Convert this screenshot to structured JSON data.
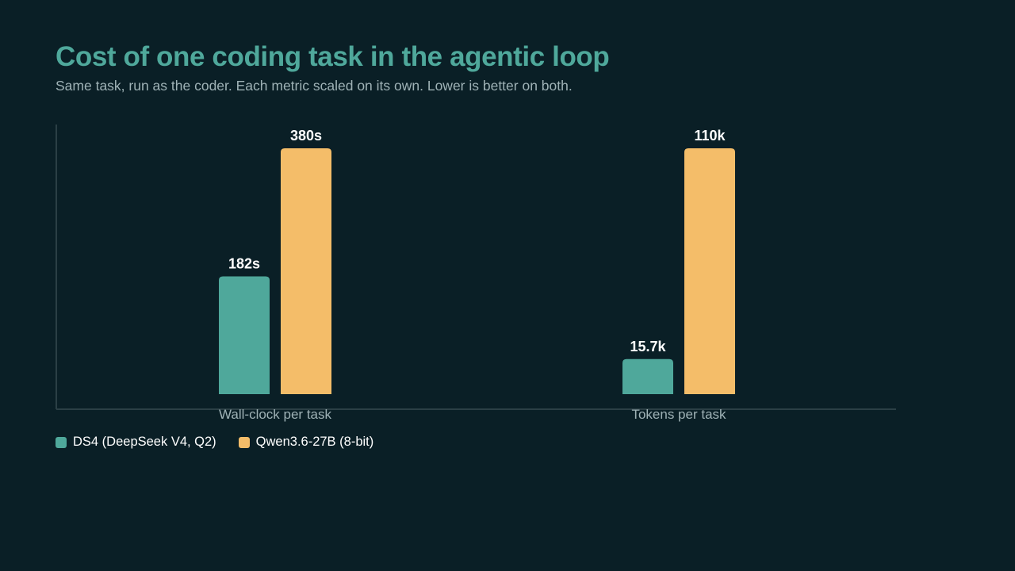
{
  "chart_data": {
    "type": "bar",
    "title": "Cost of one coding task in the agentic loop",
    "subtitle": "Same task, run as the coder. Each metric scaled on its own. Lower is better on both.",
    "categories": [
      "Wall-clock per task",
      "Tokens per task"
    ],
    "series": [
      {
        "name": "DS4 (DeepSeek V4, Q2)",
        "color": "#4fa89b",
        "values": [
          182,
          15700
        ],
        "labels": [
          "182s",
          "15.7k"
        ]
      },
      {
        "name": "Qwen3.6-27B (8-bit)",
        "color": "#f4bd69",
        "values": [
          380,
          110000
        ],
        "labels": [
          "380s",
          "110k"
        ]
      }
    ],
    "scaling": "per-category",
    "grid": false,
    "legend_position": "bottom-left"
  }
}
